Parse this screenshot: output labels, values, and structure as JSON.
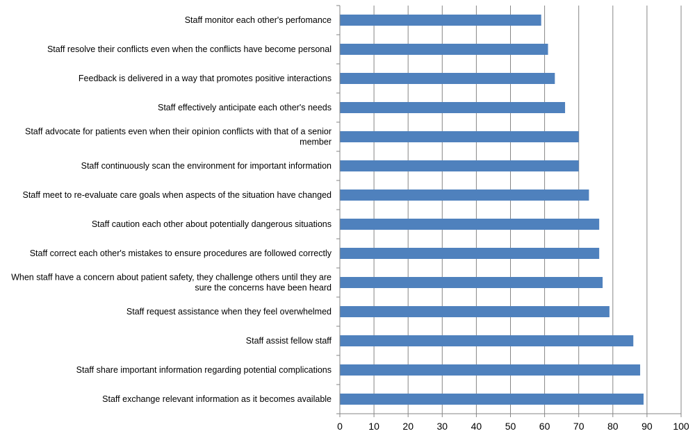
{
  "chart_data": {
    "type": "bar",
    "orientation": "horizontal",
    "categories": [
      "Staff monitor each other's perfomance",
      "Staff resolve their conflicts even when the conflicts have become personal",
      "Feedback is delivered in a way that promotes positive interactions",
      "Staff effectively anticipate each other's needs",
      "Staff advocate for patients even when their opinion conflicts with that of a senior member",
      "Staff continuously scan the environment for important information",
      "Staff meet to re-evaluate care goals when aspects of the situation have changed",
      "Staff caution each other about potentially dangerous situations",
      "Staff correct each other's mistakes to ensure procedures are followed correctly",
      "When staff have a concern about patient safety, they challenge others until they are sure the concerns have been heard",
      "Staff request assistance when they feel overwhelmed",
      "Staff assist fellow staff",
      "Staff share important information regarding potential complications",
      "Staff exchange relevant information as it becomes available"
    ],
    "category_label_lines": [
      [
        "Staff monitor each other's perfomance"
      ],
      [
        "Staff resolve their conflicts even when the conflicts have become personal"
      ],
      [
        "Feedback is delivered in a way that promotes positive interactions"
      ],
      [
        "Staff effectively anticipate each other's needs"
      ],
      [
        "Staff advocate for patients even when their opinion conflicts with that of a senior",
        "member"
      ],
      [
        "Staff continuously scan the environment for important information"
      ],
      [
        "Staff meet to re-evaluate care goals when aspects of the situation have changed"
      ],
      [
        "Staff caution each other about potentially dangerous situations"
      ],
      [
        "Staff correct each other's mistakes to ensure procedures are followed correctly"
      ],
      [
        "When staff have a concern about patient safety, they challenge others until they are",
        "sure the concerns have been heard"
      ],
      [
        "Staff request assistance when they feel overwhelmed"
      ],
      [
        "Staff assist fellow staff"
      ],
      [
        "Staff share important information regarding potential complications"
      ],
      [
        "Staff exchange relevant information as it becomes available"
      ]
    ],
    "values": [
      59,
      61,
      63,
      66,
      70,
      70,
      73,
      76,
      76,
      77,
      79,
      86,
      88,
      89
    ],
    "xlim": [
      0,
      100
    ],
    "xticks": [
      0,
      10,
      20,
      30,
      40,
      50,
      60,
      70,
      80,
      90,
      100
    ],
    "title": "",
    "xlabel": "",
    "ylabel": "",
    "grid": "vertical",
    "legend": "none",
    "bar_color": "#4f81bd",
    "grid_color": "#868686"
  }
}
